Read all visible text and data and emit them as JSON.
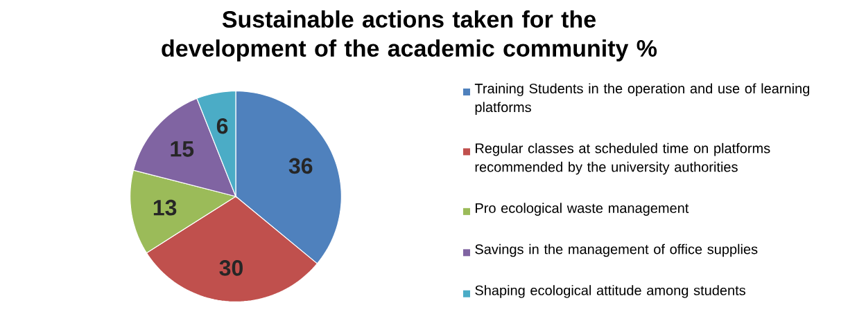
{
  "chart_data": {
    "type": "pie",
    "title": "Sustainable actions taken for the development of the academic community %",
    "categories": [
      "Training Students in the operation and use of learning platforms",
      "Regular classes at scheduled time on platforms recommended by the university authorities",
      "Pro ecological waste management",
      "Savings in the management of office supplies",
      "Shaping ecological attitude among students"
    ],
    "values": [
      36,
      30,
      13,
      15,
      6
    ],
    "colors": [
      "#4f81bd",
      "#c0504d",
      "#9bbb59",
      "#8064a2",
      "#4bacc6"
    ],
    "data_labels": true,
    "legend": "right"
  }
}
